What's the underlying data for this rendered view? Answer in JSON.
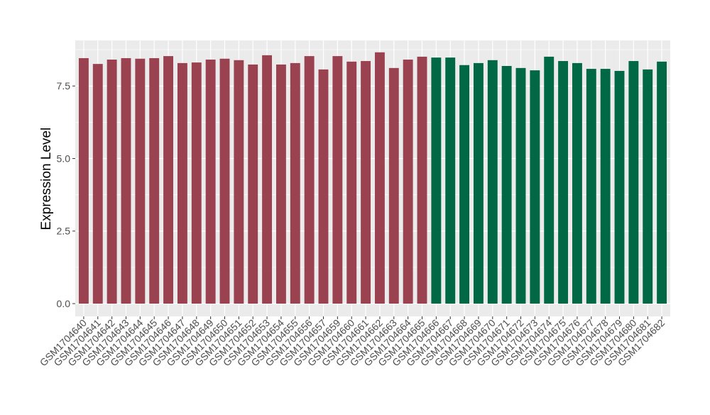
{
  "chart_data": {
    "type": "bar",
    "title": "",
    "xlabel": "",
    "ylabel": "Expression Level",
    "ylim": [
      -0.44,
      9.07
    ],
    "yticks": [
      0.0,
      2.5,
      5.0,
      7.5
    ],
    "ytick_labels": [
      "0.0",
      "2.5",
      "5.0",
      "7.5"
    ],
    "grid": true,
    "legend": "none",
    "colors": {
      "group1": "#9B4250",
      "group2": "#006845",
      "panel": "#EBEBEB",
      "grid": "#FFFFFF"
    },
    "categories": [
      "GSM1704640",
      "GSM1704641",
      "GSM1704642",
      "GSM1704643",
      "GSM1704644",
      "GSM1704645",
      "GSM1704646",
      "GSM1704647",
      "GSM1704648",
      "GSM1704649",
      "GSM1704650",
      "GSM1704651",
      "GSM1704652",
      "GSM1704653",
      "GSM1704654",
      "GSM1704655",
      "GSM1704656",
      "GSM1704657",
      "GSM1704659",
      "GSM1704660",
      "GSM1704661",
      "GSM1704662",
      "GSM1704663",
      "GSM1704664",
      "GSM1704665",
      "GSM1704666",
      "GSM1704667",
      "GSM1704668",
      "GSM1704669",
      "GSM1704670",
      "GSM1704671",
      "GSM1704672",
      "GSM1704673",
      "GSM1704674",
      "GSM1704675",
      "GSM1704676",
      "GSM1704677",
      "GSM1704678",
      "GSM1704679",
      "GSM1704680",
      "GSM1704681",
      "GSM1704682"
    ],
    "values": [
      8.46,
      8.26,
      8.41,
      8.46,
      8.44,
      8.46,
      8.53,
      8.29,
      8.31,
      8.41,
      8.44,
      8.39,
      8.24,
      8.56,
      8.24,
      8.29,
      8.53,
      8.07,
      8.53,
      8.34,
      8.36,
      8.66,
      8.12,
      8.41,
      8.51,
      8.48,
      8.48,
      8.22,
      8.29,
      8.39,
      8.19,
      8.12,
      8.04,
      8.51,
      8.36,
      8.29,
      8.09,
      8.09,
      8.02,
      8.36,
      8.07,
      8.34
    ],
    "groups": [
      1,
      1,
      1,
      1,
      1,
      1,
      1,
      1,
      1,
      1,
      1,
      1,
      1,
      1,
      1,
      1,
      1,
      1,
      1,
      1,
      1,
      1,
      1,
      1,
      1,
      2,
      2,
      2,
      2,
      2,
      2,
      2,
      2,
      2,
      2,
      2,
      2,
      2,
      2,
      2,
      2,
      2
    ]
  }
}
